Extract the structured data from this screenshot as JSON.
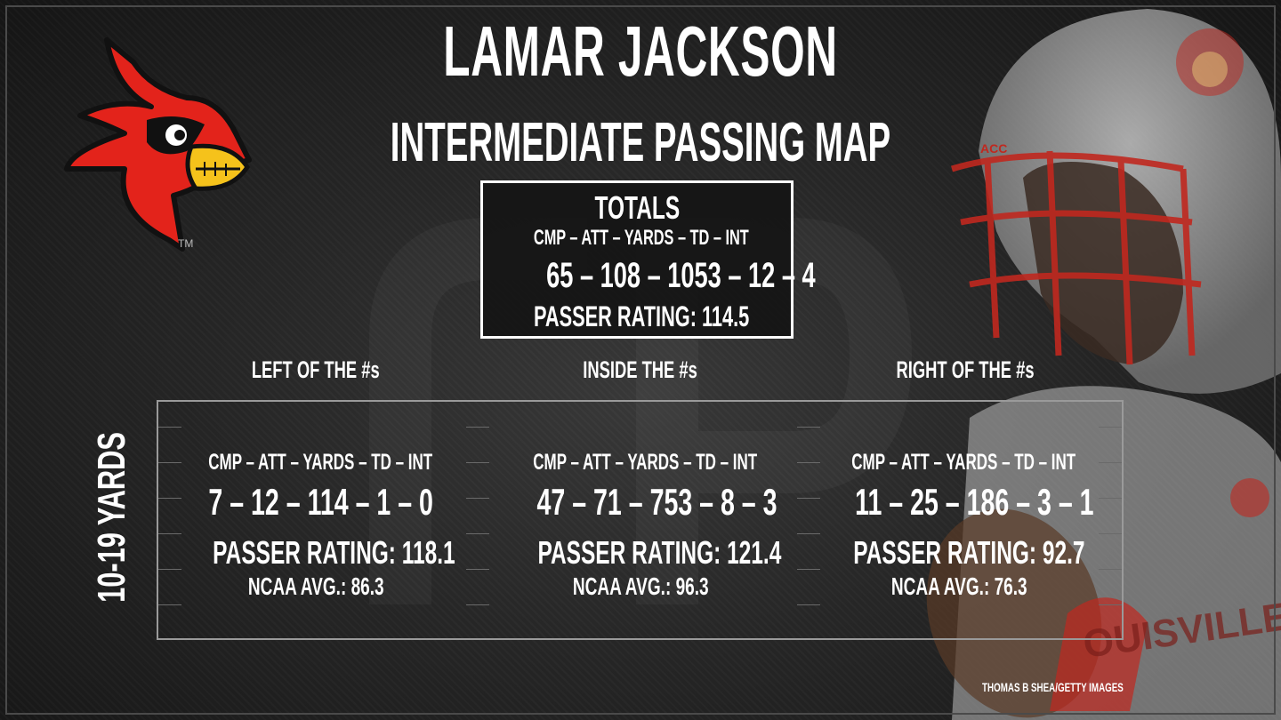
{
  "header": {
    "title": "LAMAR JACKSON",
    "subtitle": "INTERMEDIATE PASSING MAP"
  },
  "totals": {
    "heading": "TOTALS",
    "stat_labels": "CMP – ATT – YARDS – TD – INT",
    "stat_values": "65 – 108 – 1053 – 12 – 4",
    "passer_rating": "PASSER RATING: 114.5"
  },
  "columns": [
    {
      "label": "LEFT OF THE #s"
    },
    {
      "label": "INSIDE THE #s"
    },
    {
      "label": "RIGHT OF THE #s"
    }
  ],
  "row_label": "10-19 YARDS",
  "cells": [
    {
      "stat_labels": "CMP – ATT – YARDS – TD – INT",
      "stat_values": "7 – 12 – 114 – 1 – 0",
      "passer_rating": "PASSER RATING: 118.1",
      "ncaa_avg": "NCAA AVG.: 86.3"
    },
    {
      "stat_labels": "CMP – ATT – YARDS – TD – INT",
      "stat_values": "47 – 71 – 753 – 8 – 3",
      "passer_rating": "PASSER RATING: 121.4",
      "ncaa_avg": "NCAA AVG.: 96.3"
    },
    {
      "stat_labels": "CMP – ATT – YARDS – TD – INT",
      "stat_values": "11 – 25 – 186 – 3 – 1",
      "passer_rating": "PASSER RATING: 92.7",
      "ncaa_avg": "NCAA AVG.: 76.3"
    }
  ],
  "logo": {
    "icon": "cardinal-logo-icon",
    "trademark": "TM"
  },
  "helmet": {
    "brand_text": "ACC",
    "jersey_text": "OUISVILLE"
  },
  "photo_credit": "THOMAS B SHEA/GETTY IMAGES",
  "colors": {
    "background": "#1c1c1c",
    "text": "#ffffff",
    "cardinal_red": "#e3231b",
    "beak_yellow": "#f5c21b",
    "box_border": "#ffffff",
    "zone_border": "#9a9a9a"
  }
}
